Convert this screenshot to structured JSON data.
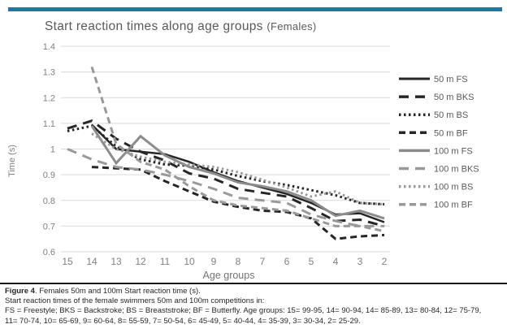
{
  "accent_bar": {
    "color": "#1A7AA6"
  },
  "chart": {
    "title_main": "Start reaction times along age groups",
    "title_suffix": "(Females)",
    "y_axis_label": "Time (s)",
    "x_axis_label": "Age groups",
    "y_tick_labels": [
      "1.4",
      "1.3",
      "1.2",
      "1.1",
      "1",
      "0.9",
      "0.8",
      "0.7",
      "0.6"
    ],
    "grid_color": "#D9D9D9",
    "tick_text_color": "#808080",
    "axis_label_color": "#737373",
    "legend_text_color": "#595959"
  },
  "chart_data": {
    "type": "line",
    "title": "Start reaction times along age groups (Females)",
    "xlabel": "Age groups",
    "ylabel": "Time (s)",
    "ylim": [
      0.6,
      1.4
    ],
    "y_tick_step": 0.1,
    "grid": true,
    "legend_position": "right",
    "categories": [
      "15",
      "14",
      "13",
      "12",
      "11",
      "10",
      "9",
      "8",
      "7",
      "6",
      "5",
      "4",
      "3",
      "2"
    ],
    "series": [
      {
        "name": "50 m FS",
        "color": "#262626",
        "style": "solid",
        "width": 2.5,
        "values": [
          null,
          1.095,
          1.0,
          0.99,
          0.98,
          0.95,
          0.91,
          0.875,
          0.85,
          0.825,
          0.79,
          0.745,
          0.75,
          0.715
        ]
      },
      {
        "name": "50 m BKS",
        "color": "#262626",
        "style": "long-dash",
        "width": 3,
        "values": [
          1.08,
          1.11,
          1.04,
          0.99,
          0.955,
          0.905,
          0.885,
          0.845,
          0.83,
          0.815,
          0.77,
          0.72,
          0.725,
          0.7
        ]
      },
      {
        "name": "50 m BS",
        "color": "#262626",
        "style": "dotted",
        "width": 3,
        "values": [
          1.07,
          1.09,
          1.01,
          0.96,
          0.94,
          0.935,
          0.92,
          0.895,
          0.875,
          0.86,
          0.84,
          0.82,
          0.79,
          0.785
        ]
      },
      {
        "name": "50 m BF",
        "color": "#262626",
        "style": "dash",
        "width": 3,
        "values": [
          null,
          0.93,
          0.925,
          0.92,
          0.875,
          0.835,
          0.795,
          0.775,
          0.76,
          0.755,
          0.73,
          0.65,
          0.66,
          0.665
        ]
      },
      {
        "name": "100 m FS",
        "color": "#8C8C8C",
        "style": "solid",
        "width": 3,
        "values": [
          null,
          1.09,
          0.945,
          1.05,
          0.975,
          0.93,
          0.905,
          0.87,
          0.855,
          0.835,
          0.8,
          0.74,
          0.76,
          0.73
        ]
      },
      {
        "name": "100 m BKS",
        "color": "#999999",
        "style": "long-dash",
        "width": 3,
        "values": [
          1.0,
          0.96,
          0.93,
          0.92,
          0.9,
          0.875,
          0.845,
          0.81,
          0.8,
          0.79,
          0.745,
          0.72,
          0.7,
          0.7
        ]
      },
      {
        "name": "100 m BS",
        "color": "#999999",
        "style": "dotted",
        "width": 3,
        "values": [
          null,
          1.06,
          1.0,
          0.97,
          0.95,
          0.94,
          0.93,
          0.91,
          0.88,
          0.85,
          0.815,
          0.835,
          0.79,
          0.785
        ]
      },
      {
        "name": "100 m BF",
        "color": "#999999",
        "style": "dash",
        "width": 3,
        "values": [
          null,
          1.32,
          1.02,
          0.95,
          0.92,
          0.855,
          0.8,
          0.78,
          0.77,
          0.76,
          0.73,
          0.7,
          0.7,
          0.68
        ]
      }
    ]
  },
  "caption": {
    "rule_color": "#1a1a1a",
    "figure_label": "Figure 4",
    "line1_rest": ". Females 50m and 100m Start reaction time (s).",
    "line2": "Start reaction times of the female swimmers 50m and 100m competitions in:",
    "line3": "FS = Freestyle; BKS = Backstroke; BS = Breaststroke; BF = Butterfly. Age groups: 15= 99-95, 14= 90-94, 14= 85-89, 13= 80-84, 12= 75-79,",
    "line4": "11= 70-74, 10= 65-69, 9= 60-64, 8= 55-59, 7= 50-54, 6= 45-49, 5= 40-44, 4= 35-39, 3= 30-34, 2= 25-29."
  }
}
